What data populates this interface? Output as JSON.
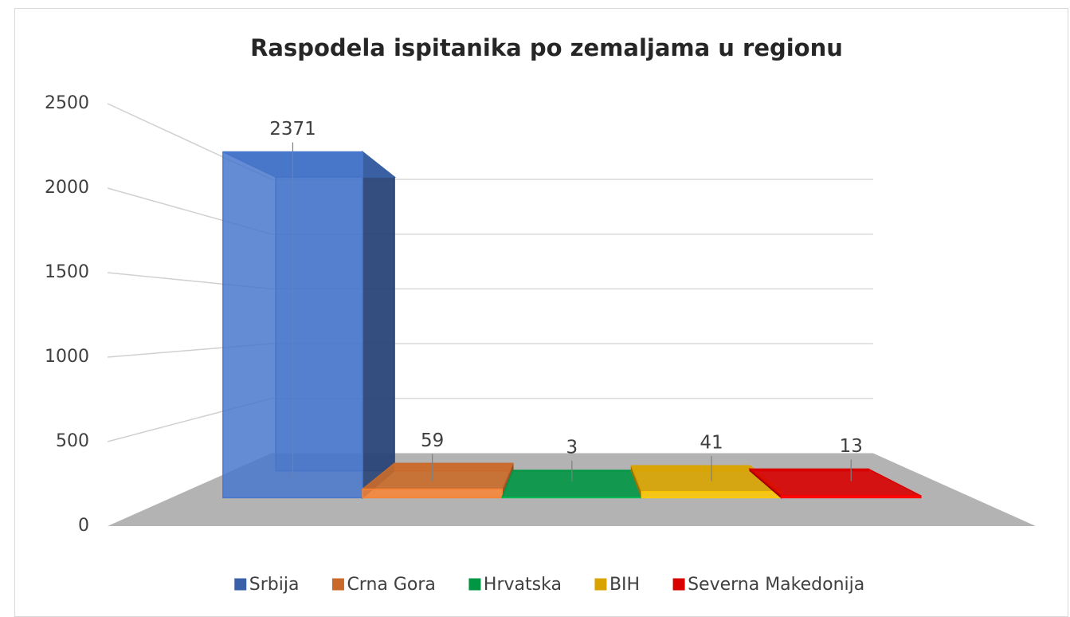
{
  "chart_data": {
    "type": "bar3d",
    "title": "Raspodela ispitanika po zemaljama u regionu",
    "series": [
      {
        "name": "Srbija",
        "color": "#4472c4",
        "values": [
          2371
        ]
      },
      {
        "name": "Crna Gora",
        "color": "#ed7d31",
        "values": [
          59
        ]
      },
      {
        "name": "Hrvatska",
        "color": "#00b050",
        "values": [
          3
        ]
      },
      {
        "name": "BIH",
        "color": "#ffc000",
        "values": [
          41
        ]
      },
      {
        "name": "Severna Makedonija",
        "color": "#ff0000",
        "values": [
          13
        ]
      }
    ],
    "ylim": [
      0,
      2500
    ],
    "yticks": [
      0,
      500,
      1000,
      1500,
      2000,
      2500
    ],
    "grid": true,
    "legend": "bottom"
  }
}
